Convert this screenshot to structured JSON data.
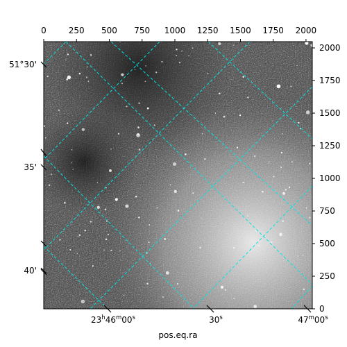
{
  "chart_data": {
    "type": "heatmap",
    "title": "",
    "xlabel": "pos.eq.ra",
    "ylabel": "",
    "pixel_axes": {
      "x": {
        "range": [
          0,
          2048
        ],
        "ticks": [
          0,
          250,
          500,
          750,
          1000,
          1250,
          1500,
          1750,
          2000
        ],
        "position": "top"
      },
      "y": {
        "range": [
          0,
          2048
        ],
        "ticks": [
          0,
          250,
          500,
          750,
          1000,
          1250,
          1500,
          1750,
          2000
        ],
        "position": "right"
      }
    },
    "world_axes": {
      "ra": {
        "ticks": [
          {
            "label_main": "23",
            "label_sup": "h",
            "label_main2": "46",
            "label_sup2": "m",
            "label_main3": "00",
            "label_sup3": "s",
            "x": 155
          },
          {
            "label_main": "30",
            "label_sup": "s",
            "x": 303
          },
          {
            "label_main": "47",
            "label_sup": "m",
            "label_main2": "00",
            "label_sup2": "s",
            "x": 443
          }
        ]
      },
      "dec": {
        "ticks": [
          {
            "label": "51°30'",
            "y": 93
          },
          {
            "label": "35'",
            "y": 241
          },
          {
            "label": "40'",
            "y": 390
          }
        ]
      }
    },
    "grid": true,
    "grid_color": "#00e5e5",
    "image_colormap": "gray",
    "image_background": "#5a5a5a"
  }
}
